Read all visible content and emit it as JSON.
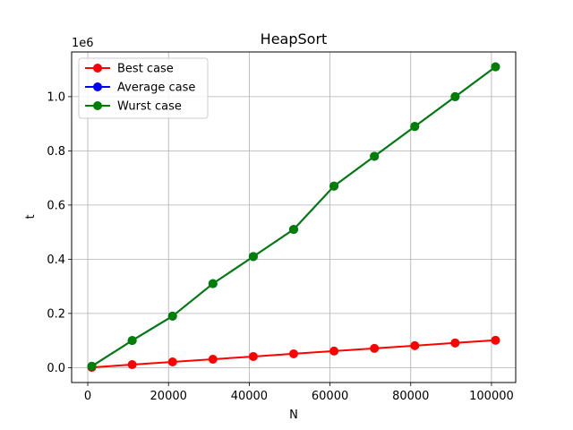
{
  "chart_data": {
    "type": "line",
    "title": "HeapSort",
    "xlabel": "N",
    "ylabel": "t",
    "y_offset_label": "1e6",
    "x": [
      1000,
      11000,
      21000,
      31000,
      41000,
      51000,
      61000,
      71000,
      81000,
      91000,
      101000
    ],
    "series": [
      {
        "name": "Best case",
        "color": "#ff0000",
        "values": [
          1000,
          11000,
          21000,
          31000,
          41000,
          51000,
          61000,
          71000,
          81000,
          91000,
          101000
        ]
      },
      {
        "name": "Average case",
        "color": "#0000ff",
        "values": [
          5000,
          100000,
          190000,
          310000,
          410000,
          510000,
          670000,
          780000,
          890000,
          1000000,
          1110000
        ]
      },
      {
        "name": "Wurst case",
        "color": "#008000",
        "values": [
          5000,
          100000,
          190000,
          310000,
          410000,
          510000,
          670000,
          780000,
          890000,
          1000000,
          1110000
        ]
      }
    ],
    "xlim": [
      -4000,
      106000
    ],
    "ylim": [
      -55000,
      1165000
    ],
    "xticks": [
      0,
      20000,
      40000,
      60000,
      80000,
      100000
    ],
    "xtick_labels": [
      "0",
      "20000",
      "40000",
      "60000",
      "80000",
      "100000"
    ],
    "yticks": [
      0,
      200000,
      400000,
      600000,
      800000,
      1000000
    ],
    "ytick_labels": [
      "0.0",
      "0.2",
      "0.4",
      "0.6",
      "0.8",
      "1.0"
    ],
    "grid": true,
    "legend_position": "upper-left"
  }
}
